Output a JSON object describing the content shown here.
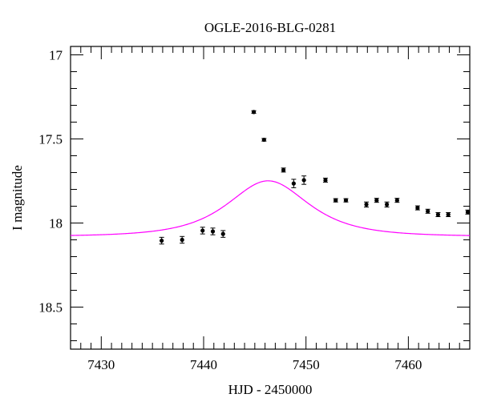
{
  "chart_data": {
    "type": "scatter",
    "title": "OGLE-2016-BLG-0281",
    "xlabel": "HJD - 2450000",
    "ylabel": "I magnitude",
    "xlim": [
      7427,
      7466
    ],
    "ylim": [
      18.75,
      16.95
    ],
    "y_inverted": true,
    "grid": false,
    "x_ticks": [
      {
        "value": 7430,
        "label": "7430"
      },
      {
        "value": 7440,
        "label": "7440"
      },
      {
        "value": 7450,
        "label": "7450"
      },
      {
        "value": 7460,
        "label": "7460"
      }
    ],
    "y_ticks": [
      {
        "value": 17,
        "label": "17"
      },
      {
        "value": 17.5,
        "label": "17.5"
      },
      {
        "value": 18,
        "label": "18"
      },
      {
        "value": 18.5,
        "label": "18.5"
      }
    ],
    "x_minor_step": 1,
    "y_minor_step": 0.1,
    "colors": {
      "points": "#000000",
      "model": "#ff00ff"
    },
    "series": [
      {
        "kind": "points_with_errorbars",
        "points": [
          {
            "x": 7435.9,
            "y": 18.105,
            "err": 0.02
          },
          {
            "x": 7437.9,
            "y": 18.1,
            "err": 0.02
          },
          {
            "x": 7439.9,
            "y": 18.045,
            "err": 0.02
          },
          {
            "x": 7440.9,
            "y": 18.05,
            "err": 0.02
          },
          {
            "x": 7441.9,
            "y": 18.065,
            "err": 0.02
          },
          {
            "x": 7444.9,
            "y": 17.34,
            "err": 0.008
          },
          {
            "x": 7445.9,
            "y": 17.505,
            "err": 0.008
          },
          {
            "x": 7447.8,
            "y": 17.685,
            "err": 0.012
          },
          {
            "x": 7448.8,
            "y": 17.765,
            "err": 0.025
          },
          {
            "x": 7449.8,
            "y": 17.745,
            "err": 0.025
          },
          {
            "x": 7451.9,
            "y": 17.745,
            "err": 0.012
          },
          {
            "x": 7452.9,
            "y": 17.865,
            "err": 0.01
          },
          {
            "x": 7453.9,
            "y": 17.865,
            "err": 0.01
          },
          {
            "x": 7455.9,
            "y": 17.89,
            "err": 0.015
          },
          {
            "x": 7456.9,
            "y": 17.865,
            "err": 0.012
          },
          {
            "x": 7457.9,
            "y": 17.89,
            "err": 0.015
          },
          {
            "x": 7458.9,
            "y": 17.865,
            "err": 0.012
          },
          {
            "x": 7460.9,
            "y": 17.91,
            "err": 0.012
          },
          {
            "x": 7461.9,
            "y": 17.93,
            "err": 0.012
          },
          {
            "x": 7462.9,
            "y": 17.95,
            "err": 0.012
          },
          {
            "x": 7463.9,
            "y": 17.95,
            "err": 0.012
          },
          {
            "x": 7465.8,
            "y": 17.935,
            "err": 0.012
          }
        ]
      },
      {
        "kind": "model_curve",
        "model": {
          "t0": 7446.3,
          "tE": 4.8,
          "u0": 0.98,
          "baseline": 18.08
        },
        "x_range": [
          7427,
          7466
        ]
      }
    ]
  }
}
